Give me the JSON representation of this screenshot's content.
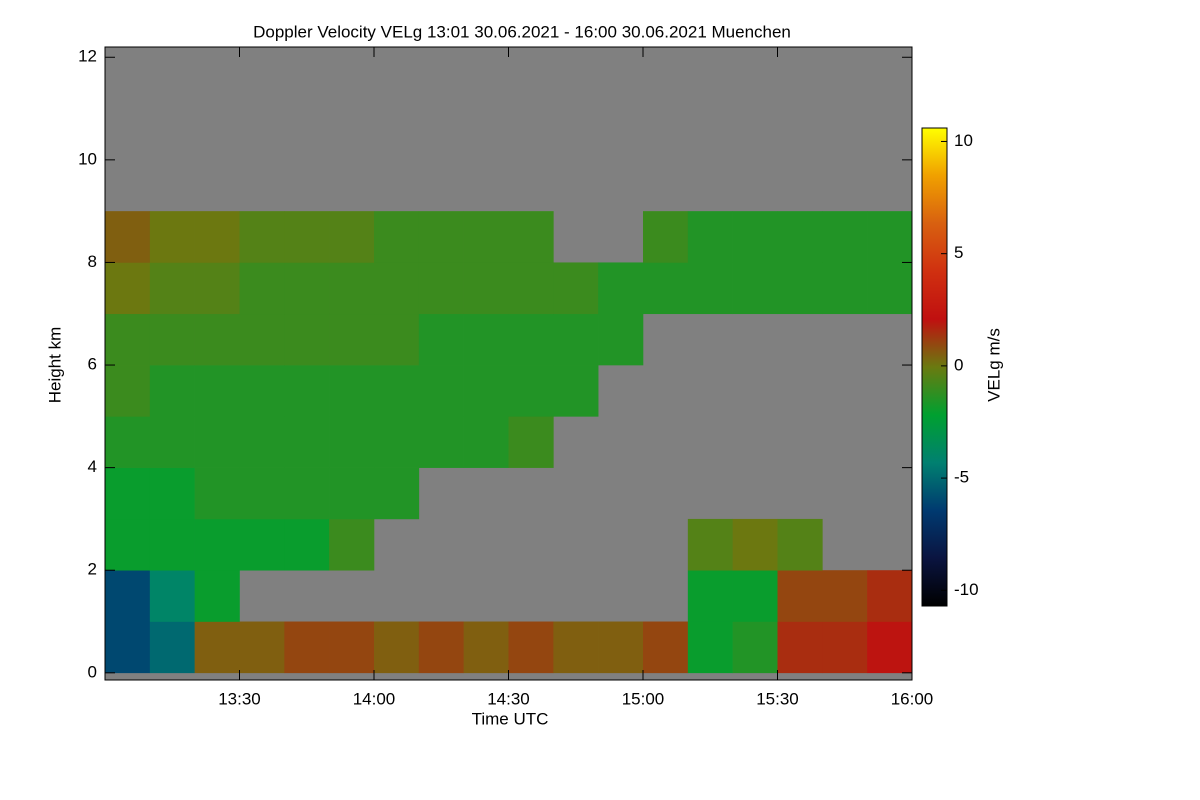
{
  "chart_data": {
    "type": "heatmap",
    "title": "Doppler Velocity VELg   13:01 30.06.2021 - 16:00 30.06.2021 Muenchen",
    "x_label": "Time UTC",
    "y_label": "Height km",
    "colorbar_label": "VELg m/s",
    "background": "#808080",
    "xlim": [
      13.0,
      16.0
    ],
    "xticks": [
      {
        "value": 13.5,
        "label": "13:30"
      },
      {
        "value": 14.0,
        "label": "14:00"
      },
      {
        "value": 14.5,
        "label": "14:30"
      },
      {
        "value": 15.0,
        "label": "15:00"
      },
      {
        "value": 15.5,
        "label": "15:30"
      },
      {
        "value": 16.0,
        "label": "16:00"
      }
    ],
    "ylim": [
      -0.14,
      12.2
    ],
    "yticks": [
      0,
      2,
      4,
      6,
      8,
      10,
      12
    ],
    "clim": [
      -10.7,
      10.6
    ],
    "cticks": [
      -10,
      -5,
      0,
      5,
      10
    ],
    "colormap": [
      "#000000",
      "#0a1440",
      "#003a70",
      "#008070",
      "#00a030",
      "#6a7a10",
      "#c01010",
      "#d03010",
      "#d86010",
      "#f0a000",
      "#ffff00"
    ],
    "x_bins": [
      13.0,
      13.1667,
      13.3333,
      13.5,
      13.6667,
      13.8333,
      14.0,
      14.1667,
      14.3333,
      14.5,
      14.6667,
      14.8333,
      15.0,
      15.1667,
      15.3333,
      15.5,
      15.6667,
      15.8333,
      16.0
    ],
    "y_bins": [
      0,
      1,
      2,
      3,
      4,
      5,
      6,
      7,
      8,
      9,
      10,
      11,
      12
    ],
    "z": [
      [
        -6,
        -5,
        0.5,
        0.5,
        1,
        1,
        0.5,
        1,
        0.5,
        1,
        0.5,
        0.5,
        1,
        -2,
        -1.5,
        1.5,
        1.5,
        2
      ],
      [
        -6,
        -4,
        -2,
        null,
        null,
        null,
        null,
        null,
        null,
        null,
        null,
        null,
        null,
        -2,
        -2,
        1,
        1,
        1.5
      ],
      [
        -2,
        -2,
        -2,
        -2,
        -2,
        -1,
        null,
        null,
        null,
        null,
        null,
        null,
        null,
        -0.5,
        0,
        -0.5,
        null,
        null
      ],
      [
        -2,
        -2,
        -1.5,
        -1.5,
        -1.5,
        -1.5,
        -1.5,
        null,
        null,
        null,
        null,
        null,
        null,
        null,
        null,
        null,
        null,
        null
      ],
      [
        -1.5,
        -1.5,
        -1.5,
        -1.5,
        -1.5,
        -1.5,
        -1.5,
        -1.5,
        -1.5,
        -1,
        null,
        null,
        null,
        null,
        null,
        null,
        null,
        null
      ],
      [
        -1,
        -1.5,
        -1.5,
        -1.5,
        -1.5,
        -1.5,
        -1.5,
        -1.5,
        -1.5,
        -1.5,
        -1.5,
        null,
        null,
        null,
        null,
        null,
        null,
        null
      ],
      [
        -1,
        -1,
        -1,
        -1,
        -1,
        -1,
        -1,
        -1.5,
        -1.5,
        -1.5,
        -1.5,
        -1.5,
        null,
        null,
        null,
        null,
        null,
        null
      ],
      [
        0,
        -0.5,
        -0.5,
        -1,
        -1,
        -1,
        -1,
        -1,
        -1,
        -1,
        -1,
        -1.5,
        -1.5,
        -1.5,
        -1.5,
        -1.5,
        -1.5,
        -1.5
      ],
      [
        0.5,
        0,
        0,
        -0.5,
        -0.5,
        -0.5,
        -1,
        -1,
        -1,
        -1,
        null,
        null,
        -1,
        -1.5,
        -1.5,
        -1.5,
        -1.5,
        -1.5
      ],
      [
        null,
        null,
        null,
        null,
        null,
        null,
        null,
        null,
        null,
        null,
        null,
        null,
        null,
        null,
        null,
        null,
        null,
        null
      ],
      [
        null,
        null,
        null,
        null,
        null,
        null,
        null,
        null,
        null,
        null,
        null,
        null,
        null,
        null,
        null,
        null,
        null,
        null
      ],
      [
        null,
        null,
        null,
        null,
        null,
        null,
        null,
        null,
        null,
        null,
        null,
        null,
        null,
        null,
        null,
        null,
        null,
        null
      ]
    ]
  }
}
